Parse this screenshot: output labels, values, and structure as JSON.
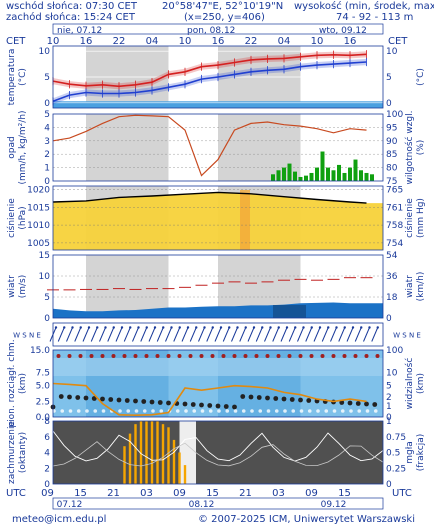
{
  "header": {
    "sunrise": "wschód słońca: 07:30 CET",
    "sunset": "zachód słońca: 15:24 CET",
    "coords": "20°58'47\"E, 52°10'19\"N",
    "grid": "(x=250, y=406)",
    "elevation_label": "wysokość (min, środek, max)",
    "elevation_values": "74 - 92 - 113 m"
  },
  "timeline": {
    "tz_left": "CET",
    "tz_right": "CET",
    "tz_bottom_left": "UTC",
    "tz_bottom_right": "UTC",
    "day_labels_top": [
      "nie, 07.12",
      "pon, 08.12",
      "wto, 09.12"
    ],
    "day_labels_bottom": [
      "07.12",
      "08.12",
      "09.12"
    ],
    "hours_top": [
      "10",
      "16",
      "22",
      "04",
      "10",
      "16",
      "22",
      "04",
      "10",
      "16"
    ],
    "hours_bottom": [
      "09",
      "15",
      "21",
      "03",
      "09",
      "15",
      "21",
      "03",
      "09",
      "15"
    ]
  },
  "panels": {
    "temperature": {
      "left_label": "temperatura",
      "left_unit": "(°C)",
      "right_unit": "(°C)",
      "ticks": [
        "10",
        "5",
        "0"
      ]
    },
    "precip": {
      "left_label": "opad",
      "left_unit": "(mm/h, kg/m²/h)",
      "right_label": "wilgotność wzgl.",
      "right_unit": "(%)",
      "left_ticks": [
        "5",
        "4",
        "3",
        "2",
        "1",
        "0"
      ],
      "right_ticks": [
        "100",
        "95",
        "90",
        "85",
        "80",
        "75"
      ]
    },
    "pressure": {
      "left_label": "ciśnienie",
      "left_unit": "(hPa)",
      "right_label": "ciśnienie",
      "right_unit": "(mm Hg)",
      "left_ticks": [
        "1020",
        "1015",
        "1010",
        "1005"
      ],
      "right_ticks": [
        "765",
        "761",
        "758",
        "754"
      ]
    },
    "wind": {
      "left_label": "wiatr",
      "left_unit": "(m/s)",
      "right_label": "wiatr",
      "right_unit": "(km/h)",
      "left_ticks": [
        "15",
        "10",
        "5",
        "0"
      ],
      "right_ticks": [
        "54",
        "36",
        "18",
        "0"
      ]
    },
    "winddir": {
      "left_label": "W S N E",
      "right_label": "W S N E"
    },
    "visibility": {
      "left_label": "pion. rozciągł. chm.",
      "left_unit": "(km)",
      "right_label": "widzialność",
      "right_unit": "(km)",
      "left_ticks": [
        "15.0",
        "7.5",
        "5.0",
        "2.5",
        "0.0"
      ],
      "right_ticks": [
        "100",
        "10",
        "5",
        "2",
        "1",
        "0"
      ]
    },
    "cloud": {
      "left_label": "zachmurzenie",
      "left_unit": "(oktanty)",
      "right_label": "mgła",
      "right_unit": "(frakcja)",
      "left_ticks": [
        "8",
        "6",
        "4",
        "2",
        "0"
      ],
      "right_ticks": [
        "1",
        "0.75",
        "0.5",
        "0.25",
        "0"
      ]
    }
  },
  "footer": {
    "email": "meteo@icm.edu.pl",
    "copyright": "© 2007-2025 ICM, Uniwersytet Warszawski"
  },
  "colors": {
    "frame": "#1a3a9a",
    "night": "#d4d4d4",
    "temp": "#d42020",
    "dew": "#2040d0",
    "humidity": "#c84a20",
    "rain": "#10a010",
    "pressure_fill": "#f7d23a",
    "wind_fill": "#1b72c6",
    "vis_bg": "#7fc1ea",
    "cloud_bg": "#505050",
    "fog": "#f5a500"
  },
  "chart_data": [
    {
      "type": "line",
      "panel": "temperature",
      "x_hours_from_start": [
        0,
        3,
        6,
        9,
        12,
        15,
        18,
        21,
        24,
        27,
        30,
        33,
        36,
        39,
        42,
        45,
        48,
        51,
        54,
        57
      ],
      "series": [
        {
          "name": "temperatura",
          "values": [
            4.2,
            3.6,
            3.3,
            3.5,
            3.2,
            3.5,
            4.0,
            5.5,
            6.0,
            7.0,
            7.3,
            7.8,
            8.3,
            8.5,
            8.6,
            8.9,
            9.2,
            9.3,
            9.2,
            9.4
          ]
        },
        {
          "name": "temperatura punktu rosy",
          "values": [
            0.3,
            1.5,
            2.0,
            1.8,
            1.8,
            2.0,
            2.4,
            3.0,
            3.6,
            4.6,
            5.0,
            5.5,
            6.0,
            6.3,
            6.5,
            7.0,
            7.3,
            7.5,
            7.7,
            7.9
          ]
        }
      ],
      "ylim": [
        -1,
        11
      ]
    },
    {
      "type": "bar",
      "panel": "precip",
      "x_hours_from_start": [
        40,
        41,
        42,
        43,
        44,
        45,
        46,
        47,
        48,
        49,
        50,
        51,
        52,
        53,
        54,
        55,
        56,
        57,
        58
      ],
      "values": [
        0.5,
        0.8,
        1.0,
        1.3,
        0.7,
        0.3,
        0.4,
        0.6,
        1.0,
        2.2,
        1.0,
        0.8,
        1.2,
        0.6,
        1.0,
        1.6,
        0.8,
        0.6,
        0.5
      ],
      "ylim": [
        0,
        5
      ]
    },
    {
      "type": "line",
      "panel": "precip-humidity",
      "x_hours_from_start": [
        0,
        3,
        6,
        9,
        12,
        15,
        18,
        21,
        24,
        27,
        30,
        33,
        36,
        39,
        42,
        45,
        48,
        51,
        54,
        57
      ],
      "series": [
        {
          "name": "wilgotność wzgl.",
          "values": [
            90.0,
            91.0,
            93.5,
            96.5,
            99.0,
            99.5,
            99.3,
            99.0,
            94.0,
            77.0,
            83.0,
            94.0,
            96.5,
            97.0,
            96.0,
            95.5,
            94.5,
            93.0,
            94.5,
            94.0
          ]
        }
      ],
      "ylim": [
        75,
        100
      ]
    },
    {
      "type": "area",
      "panel": "pressure",
      "x_hours_from_start": [
        0,
        6,
        12,
        18,
        24,
        30,
        36,
        42,
        48,
        54,
        57
      ],
      "values": [
        1016.5,
        1016.8,
        1017.8,
        1018.2,
        1018.7,
        1019.2,
        1018.8,
        1018.0,
        1017.2,
        1016.5,
        1016.2
      ],
      "ylim": [
        1003,
        1021
      ]
    },
    {
      "type": "area",
      "panel": "wind",
      "x_hours_from_start": [
        0,
        3,
        6,
        9,
        12,
        15,
        18,
        21,
        24,
        27,
        30,
        33,
        36,
        39,
        42,
        45,
        48,
        51,
        54,
        57
      ],
      "series": [
        {
          "name": "prędkość wiatru",
          "values": [
            2.2,
            1.8,
            1.6,
            1.6,
            1.8,
            1.9,
            2.2,
            2.5,
            2.5,
            2.7,
            2.8,
            2.8,
            3.0,
            3.0,
            3.2,
            3.5,
            3.6,
            3.7,
            3.5,
            3.5
          ]
        },
        {
          "name": "porywy",
          "values": [
            6.7,
            6.7,
            6.8,
            6.8,
            7.0,
            6.8,
            7.0,
            7.0,
            7.3,
            7.8,
            8.3,
            8.6,
            8.3,
            8.6,
            9.0,
            9.2,
            9.0,
            9.2,
            9.6,
            9.6
          ]
        }
      ],
      "ylim": [
        0,
        15
      ]
    },
    {
      "type": "line",
      "panel": "visibility",
      "x_hours_from_start": [
        0,
        3,
        6,
        9,
        12,
        15,
        18,
        21,
        24,
        27,
        30,
        33,
        36,
        39,
        42,
        45,
        48,
        51,
        54,
        57
      ],
      "series": [
        {
          "name": "widzialność",
          "values": [
            7.5,
            7.3,
            7.0,
            3.0,
            0.5,
            0.4,
            0.5,
            1.0,
            6.5,
            6.0,
            6.5,
            7.0,
            6.8,
            6.5,
            5.5,
            5.0,
            4.0,
            3.5,
            4.0,
            3.5
          ]
        }
      ],
      "ylim": [
        0,
        15
      ]
    },
    {
      "type": "bar",
      "panel": "cloud",
      "x_hours_from_start": [
        13,
        14,
        15,
        16,
        17,
        18,
        19,
        20,
        21,
        22,
        23,
        24
      ],
      "values": [
        0.6,
        0.8,
        0.95,
        1.0,
        1.0,
        1.0,
        1.0,
        0.95,
        0.9,
        0.7,
        0.5,
        0.3
      ],
      "ylim": [
        0,
        1
      ]
    }
  ]
}
